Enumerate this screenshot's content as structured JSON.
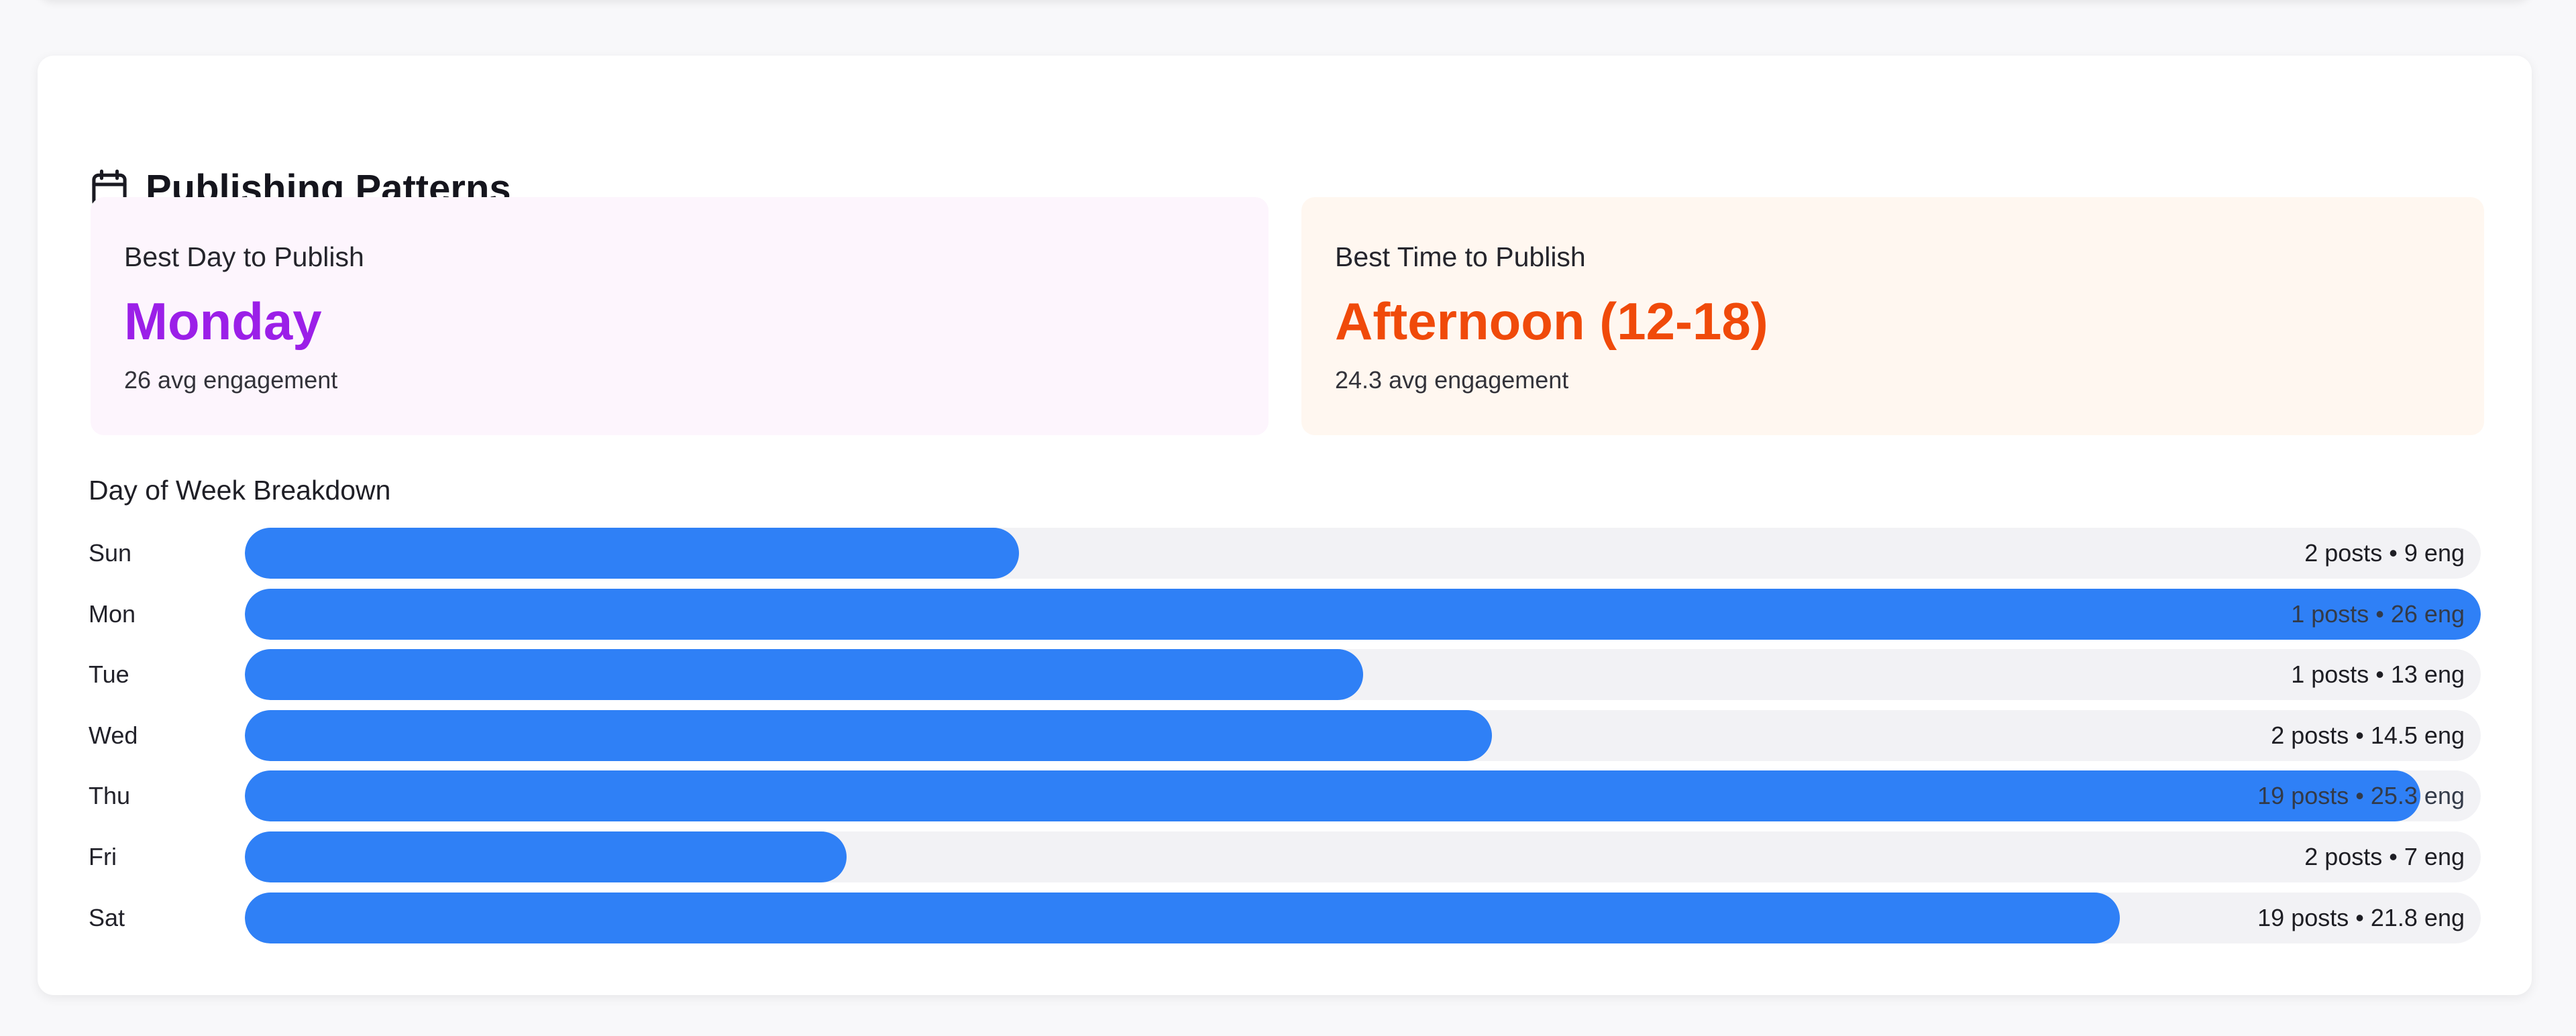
{
  "section": {
    "title": "Publishing Patterns",
    "icon": "calendar-icon"
  },
  "best_day": {
    "label": "Best Day to Publish",
    "value": "Monday",
    "sub": "26 avg engagement",
    "color": "#9b1fe8"
  },
  "best_time": {
    "label": "Best Time to Publish",
    "value": "Afternoon (12-18)",
    "sub": "24.3 avg engagement",
    "color": "#f04a0a"
  },
  "breakdown": {
    "title": "Day of Week Breakdown",
    "bar_color": "#2f80f6",
    "rows": [
      {
        "day": "Sun",
        "posts": 2,
        "eng": 9,
        "text": "2 posts • 9 eng"
      },
      {
        "day": "Mon",
        "posts": 1,
        "eng": 26,
        "text": "1 posts • 26 eng"
      },
      {
        "day": "Tue",
        "posts": 1,
        "eng": 13,
        "text": "1 posts • 13 eng"
      },
      {
        "day": "Wed",
        "posts": 2,
        "eng": 14.5,
        "text": "2 posts • 14.5 eng"
      },
      {
        "day": "Thu",
        "posts": 19,
        "eng": 25.3,
        "text": "19 posts • 25.3 eng"
      },
      {
        "day": "Fri",
        "posts": 2,
        "eng": 7,
        "text": "2 posts • 7 eng"
      },
      {
        "day": "Sat",
        "posts": 19,
        "eng": 21.8,
        "text": "19 posts • 21.8 eng"
      }
    ]
  }
}
